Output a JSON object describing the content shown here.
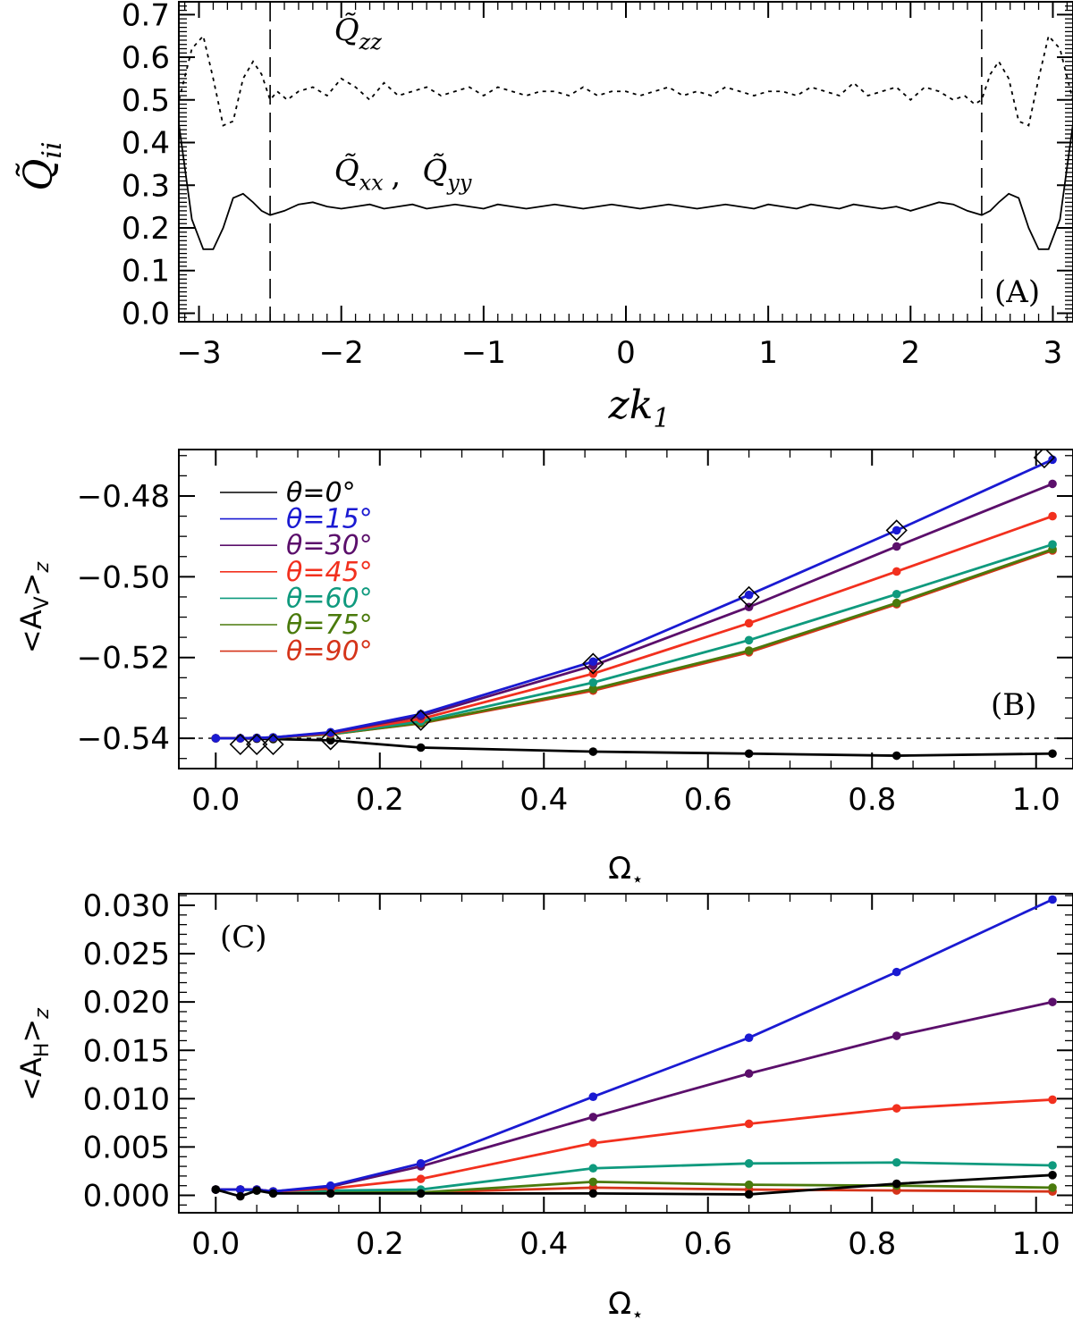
{
  "chart_data": [
    {
      "type": "line",
      "panel_label": "(A)",
      "ylabel": "Q̃ii",
      "ylabel_base": "Q̃",
      "ylabel_sub": "ii",
      "xlabel": "zk1",
      "xlabel_base": "zk",
      "xlabel_sub": "1",
      "xlim": [
        -3.14159,
        3.14159
      ],
      "ylim": [
        -0.02,
        0.73
      ],
      "xticks": [
        -3,
        -2,
        -1,
        0,
        1,
        2,
        3
      ],
      "xtick_labels": [
        "−3",
        "−2",
        "−1",
        "0",
        "1",
        "2",
        "3"
      ],
      "yticks": [
        0.0,
        0.1,
        0.2,
        0.3,
        0.4,
        0.5,
        0.6,
        0.7
      ],
      "ytick_labels": [
        "0.0",
        "0.1",
        "0.2",
        "0.3",
        "0.4",
        "0.5",
        "0.6",
        "0.7"
      ],
      "vlines": [
        -2.5,
        2.5
      ],
      "annotations": [
        {
          "base": "Q̃",
          "sub": "zz",
          "x": -2.05,
          "y": 0.64
        },
        {
          "base": "Q̃",
          "sub": "xx",
          "x": -2.05,
          "y": 0.31
        },
        {
          "text": ",",
          "x": -1.65,
          "y": 0.3
        },
        {
          "base": "Q̃",
          "sub": "yy",
          "x": -1.43,
          "y": 0.31
        }
      ],
      "series": [
        {
          "name": "Qzz",
          "style": "dotted",
          "x": [
            -3.14,
            -3.05,
            -2.97,
            -2.9,
            -2.83,
            -2.76,
            -2.69,
            -2.62,
            -2.56,
            -2.5,
            -2.45,
            -2.38,
            -2.3,
            -2.2,
            -2.1,
            -2.0,
            -1.9,
            -1.8,
            -1.7,
            -1.6,
            -1.5,
            -1.4,
            -1.3,
            -1.2,
            -1.1,
            -1.0,
            -0.9,
            -0.8,
            -0.7,
            -0.6,
            -0.5,
            -0.4,
            -0.3,
            -0.2,
            -0.1,
            0.0,
            0.1,
            0.2,
            0.3,
            0.4,
            0.5,
            0.6,
            0.7,
            0.8,
            0.9,
            1.0,
            1.1,
            1.2,
            1.3,
            1.4,
            1.5,
            1.6,
            1.7,
            1.8,
            1.9,
            2.0,
            2.1,
            2.2,
            2.3,
            2.38,
            2.45,
            2.5,
            2.56,
            2.62,
            2.69,
            2.76,
            2.83,
            2.9,
            2.97,
            3.05,
            3.14
          ],
          "values": [
            0.5,
            0.62,
            0.65,
            0.55,
            0.44,
            0.45,
            0.55,
            0.59,
            0.56,
            0.5,
            0.52,
            0.5,
            0.52,
            0.53,
            0.51,
            0.55,
            0.53,
            0.5,
            0.54,
            0.51,
            0.52,
            0.53,
            0.51,
            0.52,
            0.53,
            0.51,
            0.53,
            0.52,
            0.51,
            0.52,
            0.52,
            0.51,
            0.53,
            0.51,
            0.52,
            0.52,
            0.51,
            0.52,
            0.53,
            0.51,
            0.52,
            0.51,
            0.53,
            0.52,
            0.51,
            0.52,
            0.52,
            0.51,
            0.53,
            0.52,
            0.51,
            0.54,
            0.51,
            0.52,
            0.53,
            0.5,
            0.53,
            0.52,
            0.5,
            0.51,
            0.49,
            0.5,
            0.56,
            0.59,
            0.55,
            0.45,
            0.44,
            0.55,
            0.65,
            0.62,
            0.5
          ]
        },
        {
          "name": "Qxx, Qyy",
          "style": "solid",
          "x": [
            -3.14,
            -3.05,
            -2.97,
            -2.9,
            -2.83,
            -2.76,
            -2.69,
            -2.62,
            -2.56,
            -2.5,
            -2.4,
            -2.3,
            -2.2,
            -2.1,
            -2.0,
            -1.9,
            -1.8,
            -1.7,
            -1.6,
            -1.5,
            -1.4,
            -1.3,
            -1.2,
            -1.1,
            -1.0,
            -0.9,
            -0.8,
            -0.7,
            -0.6,
            -0.5,
            -0.4,
            -0.3,
            -0.2,
            -0.1,
            0.0,
            0.1,
            0.2,
            0.3,
            0.4,
            0.5,
            0.6,
            0.7,
            0.8,
            0.9,
            1.0,
            1.1,
            1.2,
            1.3,
            1.4,
            1.5,
            1.6,
            1.7,
            1.8,
            1.9,
            2.0,
            2.1,
            2.2,
            2.3,
            2.4,
            2.5,
            2.56,
            2.62,
            2.69,
            2.76,
            2.83,
            2.9,
            2.97,
            3.05,
            3.14
          ],
          "values": [
            0.44,
            0.22,
            0.15,
            0.15,
            0.2,
            0.27,
            0.28,
            0.26,
            0.24,
            0.23,
            0.24,
            0.255,
            0.26,
            0.25,
            0.245,
            0.25,
            0.255,
            0.245,
            0.25,
            0.255,
            0.245,
            0.25,
            0.255,
            0.25,
            0.245,
            0.255,
            0.25,
            0.245,
            0.25,
            0.255,
            0.25,
            0.245,
            0.25,
            0.255,
            0.25,
            0.245,
            0.25,
            0.255,
            0.25,
            0.245,
            0.25,
            0.255,
            0.25,
            0.245,
            0.255,
            0.25,
            0.245,
            0.255,
            0.25,
            0.245,
            0.255,
            0.25,
            0.245,
            0.25,
            0.24,
            0.25,
            0.26,
            0.255,
            0.24,
            0.23,
            0.24,
            0.26,
            0.28,
            0.27,
            0.2,
            0.15,
            0.15,
            0.22,
            0.44
          ]
        }
      ]
    },
    {
      "type": "line",
      "panel_label": "(B)",
      "ylabel": "<AV>z",
      "ylabel_main": "<A",
      "ylabel_mid": "V",
      "ylabel_end": ">",
      "ylabel_z": "z",
      "xlabel": "Ω⋆",
      "xlabel_main": "Ω",
      "xlabel_sub": "⋆",
      "xlim": [
        -0.045,
        1.045
      ],
      "ylim": [
        -0.5475,
        -0.4685
      ],
      "xticks": [
        0.0,
        0.2,
        0.4,
        0.6,
        0.8,
        1.0
      ],
      "xtick_labels": [
        "0.0",
        "0.2",
        "0.4",
        "0.6",
        "0.8",
        "1.0"
      ],
      "yticks": [
        -0.54,
        -0.52,
        -0.5,
        -0.48
      ],
      "ytick_labels": [
        "−0.54",
        "−0.52",
        "−0.50",
        "−0.48"
      ],
      "hline": -0.54,
      "categories_x": [
        0.0,
        0.03,
        0.05,
        0.07,
        0.14,
        0.25,
        0.46,
        0.65,
        0.83,
        1.02
      ],
      "diamonds": {
        "x": [
          0.03,
          0.05,
          0.07,
          0.14,
          0.25,
          0.46,
          0.65,
          0.83,
          1.01
        ],
        "y": [
          -0.5415,
          -0.5415,
          -0.5415,
          -0.5403,
          -0.5355,
          -0.5215,
          -0.505,
          -0.4885,
          -0.4705
        ]
      },
      "series": [
        {
          "name": "θ=0°",
          "color": "#000000",
          "values": [
            -0.54,
            -0.54,
            -0.5401,
            -0.5402,
            -0.5405,
            -0.5423,
            -0.5433,
            -0.5438,
            -0.5443,
            -0.5438
          ]
        },
        {
          "name": "θ=15°",
          "color": "#1a1ad2",
          "values": [
            -0.54,
            -0.54,
            -0.5399,
            -0.5398,
            -0.5385,
            -0.534,
            -0.521,
            -0.5045,
            -0.4885,
            -0.471
          ]
        },
        {
          "name": "θ=30°",
          "color": "#5b0f6b",
          "values": [
            -0.54,
            -0.54,
            -0.5399,
            -0.5398,
            -0.5386,
            -0.5345,
            -0.522,
            -0.5075,
            -0.4925,
            -0.477
          ]
        },
        {
          "name": "θ=45°",
          "color": "#f2301e",
          "values": [
            -0.54,
            -0.54,
            -0.5399,
            -0.5398,
            -0.5388,
            -0.5352,
            -0.524,
            -0.5115,
            -0.4987,
            -0.485
          ]
        },
        {
          "name": "θ=60°",
          "color": "#0f9a7e",
          "values": [
            -0.54,
            -0.54,
            -0.5399,
            -0.5398,
            -0.5389,
            -0.5358,
            -0.5262,
            -0.5157,
            -0.5043,
            -0.492
          ]
        },
        {
          "name": "θ=75°",
          "color": "#4a7a0c",
          "values": [
            -0.54,
            -0.54,
            -0.5399,
            -0.5399,
            -0.539,
            -0.5362,
            -0.5278,
            -0.5183,
            -0.5065,
            -0.4932
          ]
        },
        {
          "name": "θ=90°",
          "color": "#d5341a",
          "values": [
            -0.54,
            -0.54,
            -0.5399,
            -0.5399,
            -0.539,
            -0.5363,
            -0.5282,
            -0.5187,
            -0.5068,
            -0.4935
          ]
        }
      ],
      "legend": {
        "placement": "top-left",
        "entries": [
          {
            "label": "θ=0°",
            "color": "#000000"
          },
          {
            "label": "θ=15°",
            "color": "#1a1ad2"
          },
          {
            "label": "θ=30°",
            "color": "#5b0f6b"
          },
          {
            "label": "θ=45°",
            "color": "#f2301e"
          },
          {
            "label": "θ=60°",
            "color": "#0f9a7e"
          },
          {
            "label": "θ=75°",
            "color": "#4a7a0c"
          },
          {
            "label": "θ=90°",
            "color": "#d5341a"
          }
        ]
      }
    },
    {
      "type": "line",
      "panel_label": "(C)",
      "ylabel": "<AH>z",
      "ylabel_main": "<A",
      "ylabel_mid": "H",
      "ylabel_end": ">",
      "ylabel_z": "z",
      "xlabel": "Ω⋆",
      "xlabel_main": "Ω",
      "xlabel_sub": "⋆",
      "xlim": [
        -0.045,
        1.045
      ],
      "ylim": [
        -0.0018,
        0.0312
      ],
      "xticks": [
        0.0,
        0.2,
        0.4,
        0.6,
        0.8,
        1.0
      ],
      "xtick_labels": [
        "0.0",
        "0.2",
        "0.4",
        "0.6",
        "0.8",
        "1.0"
      ],
      "yticks": [
        0.0,
        0.005,
        0.01,
        0.015,
        0.02,
        0.025,
        0.03
      ],
      "ytick_labels": [
        "0.000",
        "0.005",
        "0.010",
        "0.015",
        "0.020",
        "0.025",
        "0.030"
      ],
      "categories_x": [
        0.0,
        0.03,
        0.05,
        0.07,
        0.14,
        0.25,
        0.46,
        0.65,
        0.83,
        1.02
      ],
      "series": [
        {
          "name": "θ=0°",
          "color": "#000000",
          "values": [
            0.0006,
            -0.0001,
            0.0005,
            0.0002,
            0.0002,
            0.0002,
            0.0002,
            0.0001,
            0.0012,
            0.0021
          ]
        },
        {
          "name": "θ=15°",
          "color": "#1a1ad2",
          "values": [
            0.0006,
            0.0006,
            0.0006,
            0.0004,
            0.001,
            0.0033,
            0.0102,
            0.0163,
            0.0231,
            0.0306
          ]
        },
        {
          "name": "θ=30°",
          "color": "#5b0f6b",
          "values": [
            0.0006,
            0.0006,
            0.0006,
            0.0004,
            0.0009,
            0.003,
            0.0081,
            0.0126,
            0.0165,
            0.02
          ]
        },
        {
          "name": "θ=45°",
          "color": "#f2301e",
          "values": [
            0.0006,
            0.0006,
            0.0006,
            0.0004,
            0.0007,
            0.0017,
            0.0054,
            0.0074,
            0.009,
            0.0099
          ]
        },
        {
          "name": "θ=60°",
          "color": "#0f9a7e",
          "values": [
            0.0006,
            0.0006,
            0.0005,
            0.0004,
            0.0005,
            0.0006,
            0.0028,
            0.0033,
            0.0034,
            0.0031
          ]
        },
        {
          "name": "θ=75°",
          "color": "#4a7a0c",
          "values": [
            0.0006,
            0.0006,
            0.0005,
            0.0004,
            0.0004,
            0.0003,
            0.0014,
            0.0011,
            0.001,
            0.0008
          ]
        },
        {
          "name": "θ=90°",
          "color": "#d5341a",
          "values": [
            0.0006,
            0.0006,
            0.0005,
            0.0003,
            0.0004,
            0.0003,
            0.0008,
            0.0006,
            0.0005,
            0.0004
          ]
        }
      ]
    }
  ]
}
